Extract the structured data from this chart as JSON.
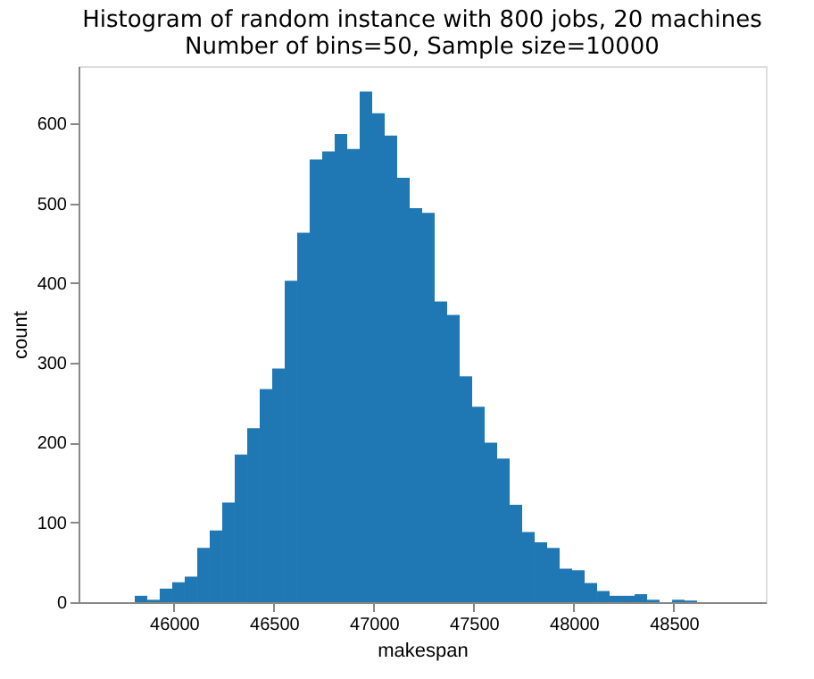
{
  "chart_data": {
    "type": "histogram",
    "title": "Histogram of random instance with 800 jobs, 20 machines",
    "subtitle": "Number of bins=50, Sample size=10000",
    "xlabel": "makespan",
    "ylabel": "count",
    "color": "#1f77b4",
    "bins": [
      45679,
      45741.5,
      45804,
      45866.5,
      45929,
      45991.5,
      46054,
      46116.5,
      46179,
      46241.5,
      46304,
      46366.5,
      46429,
      46491.5,
      46554,
      46616.5,
      46679,
      46741.5,
      46804,
      46866.5,
      46929,
      46991.5,
      47054,
      47116.5,
      47179,
      47241.5,
      47304,
      47366.5,
      47429,
      47491.5,
      47554,
      47616.5,
      47679,
      47741.5,
      47804,
      47866.5,
      47929,
      47991.5,
      48054,
      48116.5,
      48179,
      48241.5,
      48304,
      48366.5,
      48429,
      48491.5,
      48554,
      48616.5,
      48679,
      48741.5,
      48804
    ],
    "values": [
      0,
      0,
      8,
      3,
      17,
      25,
      32,
      68,
      90,
      125,
      185,
      218,
      267,
      293,
      403,
      463,
      555,
      565,
      587,
      568,
      640,
      613,
      585,
      532,
      494,
      488,
      377,
      360,
      283,
      245,
      200,
      180,
      122,
      88,
      75,
      68,
      42,
      40,
      24,
      14,
      8,
      8,
      10,
      3,
      0,
      3,
      2,
      0,
      0,
      0
    ],
    "xlim": [
      45523,
      48960
    ],
    "xticks": [
      46000,
      46500,
      47000,
      47500,
      48000,
      48500
    ],
    "ylim": [
      0,
      672
    ],
    "yticks": [
      0,
      100,
      200,
      300,
      400,
      500,
      600
    ],
    "grid": false
  }
}
